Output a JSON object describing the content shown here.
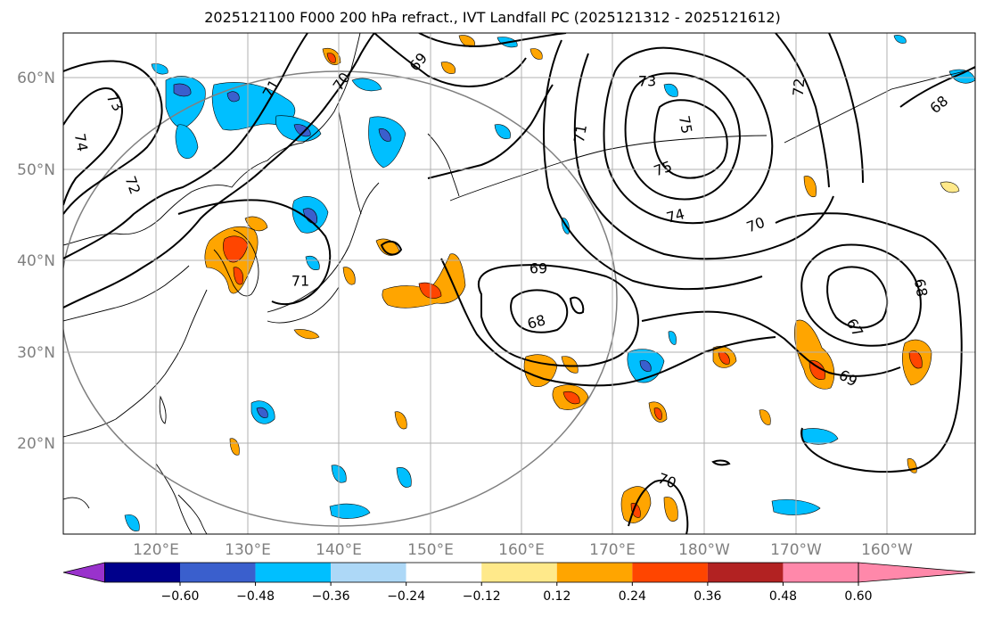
{
  "title": "2025121100 F000 200 hPa refract., IVT Landfall PC (2025121312 - 2025121612)",
  "lat_labels": [
    "60°N",
    "50°N",
    "40°N",
    "30°N",
    "20°N"
  ],
  "lon_labels": [
    "120°E",
    "130°E",
    "140°E",
    "150°E",
    "160°E",
    "170°E",
    "180°W",
    "170°W",
    "160°W"
  ],
  "contour_labels": [
    "73",
    "74",
    "72",
    "71",
    "70",
    "69",
    "73",
    "75",
    "75",
    "71",
    "72",
    "74",
    "70",
    "69",
    "68",
    "71",
    "68",
    "67",
    "69",
    "70",
    "68"
  ],
  "colorbar": {
    "ticks": [
      "−0.60",
      "−0.48",
      "−0.36",
      "−0.24",
      "−0.12",
      "0.12",
      "0.24",
      "0.36",
      "0.48",
      "0.60"
    ],
    "colors": [
      "#9932cc",
      "#00008b",
      "#3a5fcd",
      "#00bfff",
      "#add8f7",
      "#ffffff",
      "#ffe98a",
      "#ffa500",
      "#ff4500",
      "#b22222",
      "#ff88aa"
    ]
  }
}
